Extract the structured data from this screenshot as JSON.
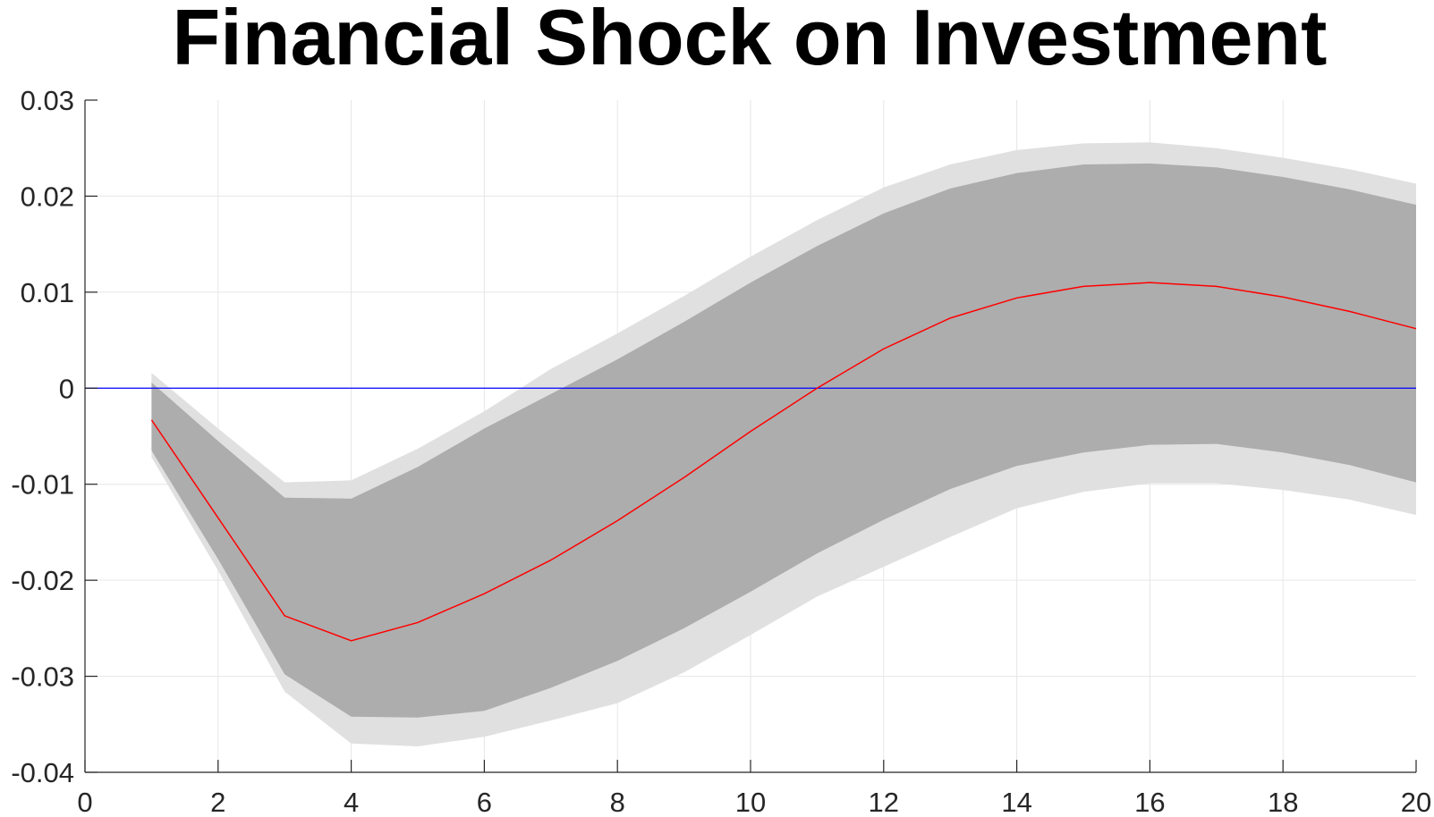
{
  "chart_data": {
    "type": "line",
    "title": "Financial Shock on Investment",
    "xlabel": "",
    "ylabel": "",
    "xlim": [
      0,
      20
    ],
    "ylim": [
      -0.04,
      0.03
    ],
    "xticks": [
      0,
      2,
      4,
      6,
      8,
      10,
      12,
      14,
      16,
      18,
      20
    ],
    "yticks": [
      -0.04,
      -0.03,
      -0.02,
      -0.01,
      0,
      0.01,
      0.02,
      0.03
    ],
    "ytick_labels": [
      "-0.04",
      "-0.03",
      "-0.02",
      "-0.01",
      "0",
      "0.01",
      "0.02",
      "0.03"
    ],
    "grid": true,
    "x": [
      1,
      2,
      3,
      4,
      5,
      6,
      7,
      8,
      9,
      10,
      11,
      12,
      13,
      14,
      15,
      16,
      17,
      18,
      19,
      20
    ],
    "median": [
      -0.0033,
      -0.0135,
      -0.0237,
      -0.0263,
      -0.0244,
      -0.0214,
      -0.0179,
      -0.0138,
      -0.0093,
      -0.0045,
      0.0,
      0.0041,
      0.0073,
      0.0094,
      0.0106,
      0.011,
      0.0106,
      0.0095,
      0.008,
      0.0062
    ],
    "inner_band_lower": [
      -0.0065,
      -0.0178,
      -0.0298,
      -0.0342,
      -0.0343,
      -0.0336,
      -0.0312,
      -0.0284,
      -0.025,
      -0.0212,
      -0.0172,
      -0.0137,
      -0.0105,
      -0.0081,
      -0.0067,
      -0.0059,
      -0.0058,
      -0.0067,
      -0.008,
      -0.0098
    ],
    "inner_band_upper": [
      0.0006,
      -0.0055,
      -0.0114,
      -0.0115,
      -0.0082,
      -0.0042,
      -0.0006,
      0.003,
      0.0069,
      0.011,
      0.0148,
      0.0182,
      0.0208,
      0.0224,
      0.0233,
      0.0234,
      0.023,
      0.022,
      0.0207,
      0.0191
    ],
    "outer_band_lower": [
      -0.0072,
      -0.019,
      -0.0316,
      -0.037,
      -0.0373,
      -0.0363,
      -0.0346,
      -0.0328,
      -0.0296,
      -0.0257,
      -0.0217,
      -0.0186,
      -0.0155,
      -0.0125,
      -0.0108,
      -0.0099,
      -0.0099,
      -0.0106,
      -0.0116,
      -0.0132
    ],
    "outer_band_upper": [
      0.0016,
      -0.0042,
      -0.0098,
      -0.0096,
      -0.0063,
      -0.0024,
      0.002,
      0.0057,
      0.0096,
      0.0137,
      0.0175,
      0.0209,
      0.0233,
      0.0248,
      0.0255,
      0.0256,
      0.025,
      0.024,
      0.0228,
      0.0213
    ],
    "zero_line": 0,
    "colors": {
      "median": "#ff0000",
      "zero_line": "#0000ff",
      "inner_band": "#adadad",
      "outer_band": "#e0e0e0",
      "grid": "#e6e6e6",
      "axis": "#262626"
    }
  }
}
